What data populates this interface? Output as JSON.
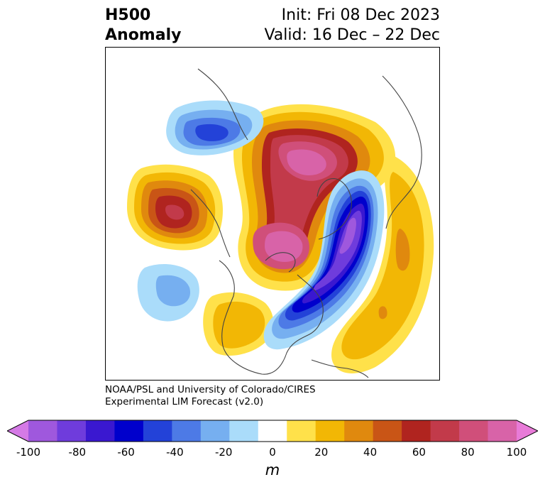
{
  "title": {
    "field": "H500",
    "type": "Anomaly",
    "init": "Init: Fri 08 Dec 2023",
    "valid": "Valid: 16 Dec – 22 Dec"
  },
  "credit": {
    "line1": "NOAA/PSL and University of Colorado/CIRES",
    "line2": "Experimental LIM Forecast (v2.0)"
  },
  "colorbar": {
    "unit": "m",
    "levels": [
      -100,
      -90,
      -80,
      -70,
      -60,
      -50,
      -40,
      -30,
      -20,
      -10,
      10,
      20,
      30,
      40,
      50,
      60,
      70,
      80,
      90,
      100
    ],
    "colors": [
      "#d57ae6",
      "#9f58dd",
      "#6f3cdc",
      "#3a18d0",
      "#0000cc",
      "#2342d8",
      "#4d7ae6",
      "#76aff0",
      "#aadcfa",
      "#ffffff",
      "#ffe14a",
      "#f2b705",
      "#e0890e",
      "#c95516",
      "#b0241f",
      "#c23a4a",
      "#d04f7a",
      "#d863a8",
      "#e87bd8"
    ],
    "tick_labels": [
      "-100",
      "-80",
      "-60",
      "-40",
      "-20",
      "0",
      "20",
      "40",
      "60",
      "80",
      "100"
    ]
  },
  "map": {
    "projection": "north-polar-stereographic",
    "anomaly_centers": [
      {
        "region": "North Pacific",
        "sign": "positive",
        "peak_m": 60
      },
      {
        "region": "Eastern Siberia",
        "sign": "negative",
        "peak_m": -50
      },
      {
        "region": "Arctic / Scandinavia",
        "sign": "positive",
        "peak_m": 80
      },
      {
        "region": "Northern Canada",
        "sign": "positive",
        "peak_m": 80
      },
      {
        "region": "Eastern North America to Europe",
        "sign": "negative",
        "peak_m": -70
      },
      {
        "region": "Central Pacific",
        "sign": "negative",
        "peak_m": -30
      },
      {
        "region": "Western United States",
        "sign": "positive",
        "peak_m": 20
      },
      {
        "region": "Central Atlantic",
        "sign": "positive",
        "peak_m": 30
      }
    ]
  }
}
